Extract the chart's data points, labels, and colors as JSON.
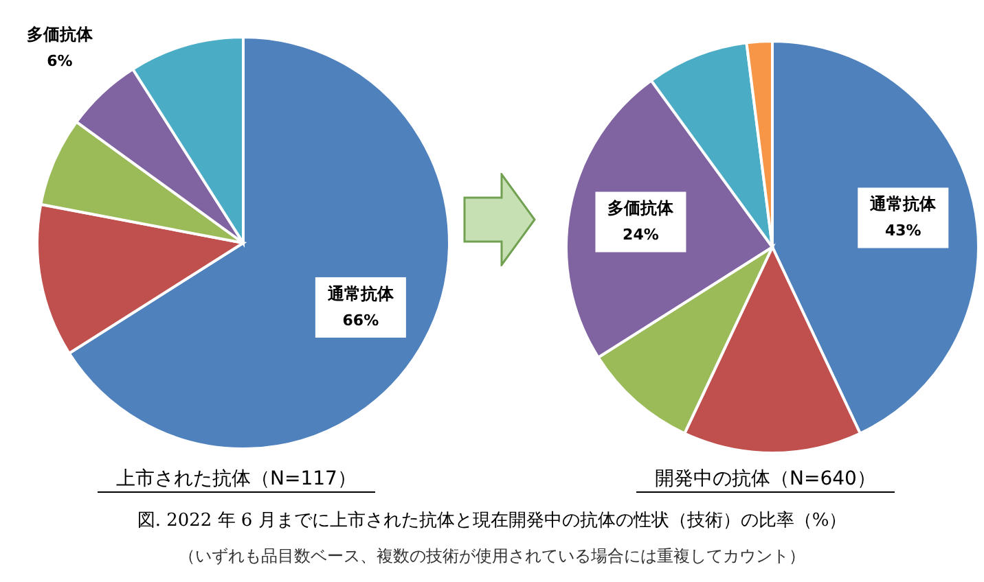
{
  "chart_data": [
    {
      "type": "pie",
      "title": "上市された抗体（N=117）",
      "categories": [
        "通常抗体",
        null,
        null,
        "多価抗体",
        null
      ],
      "values": [
        66,
        12,
        7,
        6,
        9
      ],
      "colors": [
        "#4f81bd",
        "#c0504d",
        "#9bbb59",
        "#8064a2",
        "#4bacc6"
      ],
      "value_labels": [
        "66%",
        null,
        null,
        "6%",
        null
      ]
    },
    {
      "type": "pie",
      "title": "開発中の抗体（N=640）",
      "categories": [
        "通常抗体",
        null,
        null,
        "多価抗体",
        null,
        null
      ],
      "values": [
        43,
        14,
        9,
        24,
        8,
        2
      ],
      "colors": [
        "#4f81bd",
        "#c0504d",
        "#9bbb59",
        "#8064a2",
        "#4bacc6",
        "#f79646"
      ],
      "value_labels": [
        "43%",
        null,
        null,
        "24%",
        null,
        null
      ],
      "annotations": [
        "図.  2022 年 6 月までに上市された抗体と現在開発中の抗体の性状（技術）の比率（%）",
        "（いずれも品目数ベース、複数の技術が使用されている場合には重複してカウント）"
      ]
    }
  ]
}
